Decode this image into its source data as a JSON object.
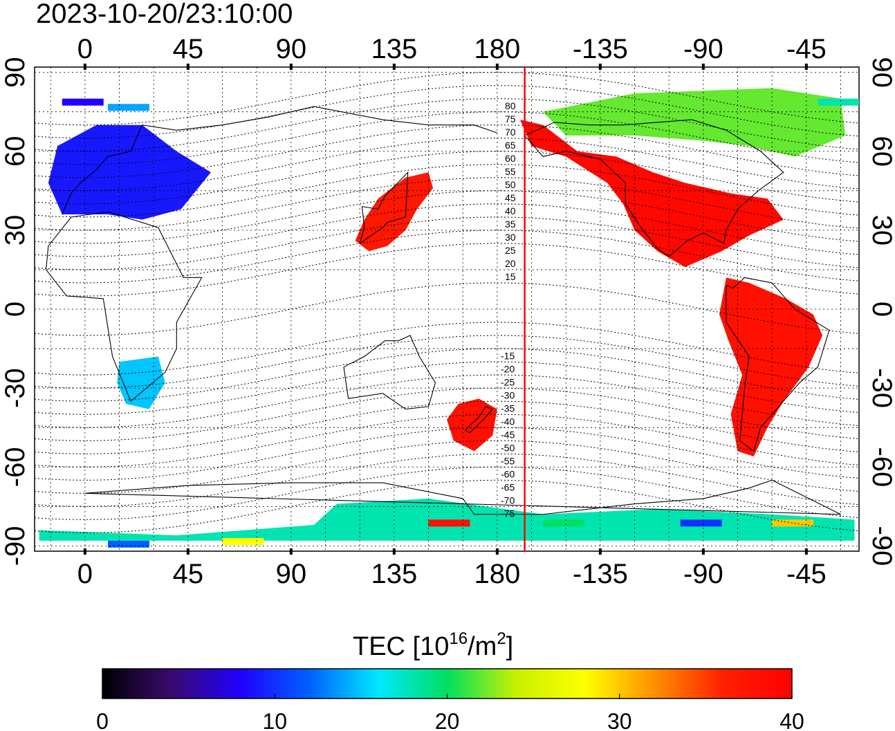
{
  "timestamp": "2023-10-20/23:10:00",
  "colorbar": {
    "label_main": "TEC  [10",
    "label_sup1": "16",
    "label_mid": "/m",
    "label_sup2": "2",
    "label_end": "]",
    "ticks": [
      "0",
      "10",
      "20",
      "30",
      "40"
    ],
    "min": 0,
    "max": 40,
    "stops": [
      "#000000",
      "#3a0a6e",
      "#2000ff",
      "#0060ff",
      "#00e8ff",
      "#00e060",
      "#c8f000",
      "#ffff00",
      "#ff9000",
      "#ff2000",
      "#ff0000"
    ]
  },
  "map": {
    "lon_ticks_top": [
      "0",
      "45",
      "90",
      "135",
      "180",
      "-135",
      "-90",
      "-45"
    ],
    "lon_ticks_bottom": [
      "0",
      "45",
      "90",
      "135",
      "180",
      "-135",
      "-90",
      "-45"
    ],
    "lat_ticks_left": [
      "90",
      "60",
      "30",
      "0",
      "-30",
      "-60",
      "-90"
    ],
    "lat_ticks_right": [
      "90",
      "60",
      "30",
      "0",
      "-30",
      "-60",
      "-90"
    ],
    "lon_range": [
      -22,
      338
    ],
    "lat_range": [
      -92,
      92
    ],
    "terminator_lon": 192,
    "terminator_color": "#ff0000",
    "contour_labels_north": [
      "80",
      "75",
      "70",
      "65",
      "60",
      "55",
      "50",
      "45",
      "40",
      "35",
      "30",
      "25",
      "20",
      "15"
    ],
    "contour_labels_south": [
      "-15",
      "-20",
      "-25",
      "-30",
      "-35",
      "-40",
      "-45",
      "-50",
      "-55",
      "-60",
      "-65",
      "-70",
      "-75"
    ]
  },
  "tec_regions": [
    {
      "name": "north-america",
      "tec": 39
    },
    {
      "name": "south-america",
      "tec": 38
    },
    {
      "name": "east-asia",
      "tec": 37
    },
    {
      "name": "new-zealand",
      "tec": 38
    },
    {
      "name": "europe",
      "tec": 9
    },
    {
      "name": "canada-arctic",
      "tec": 22
    },
    {
      "name": "southern-africa",
      "tec": 15
    },
    {
      "name": "antarctica",
      "tec": 18
    }
  ]
}
